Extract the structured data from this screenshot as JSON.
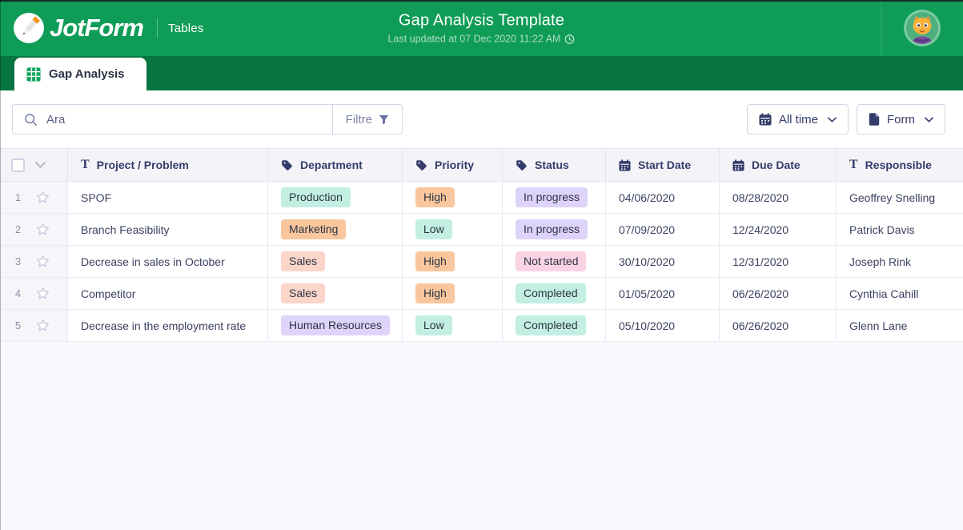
{
  "brand": {
    "logo_text": "JotForm",
    "product": "Tables"
  },
  "header": {
    "title": "Gap Analysis Template",
    "subtitle": "Last updated at 07 Dec 2020 11:22 AM"
  },
  "tab": {
    "label": "Gap Analysis"
  },
  "toolbar": {
    "search_placeholder": "Ara",
    "filter_label": "Filtre",
    "all_time_label": "All time",
    "form_label": "Form"
  },
  "icons": [
    "pencil-logo-icon",
    "clock-icon",
    "cat-avatar",
    "table-grid-icon",
    "search-icon",
    "filter-funnel-icon",
    "calendar-icon",
    "document-icon",
    "chevron-down-icon",
    "text-type-icon",
    "tag-icon",
    "star-icon",
    "checkbox"
  ],
  "colors": {
    "header_green": "#0f9c57",
    "tab_strip_green": "#077640",
    "pill_teal": "#c2efe2",
    "pill_orange": "#f9c69d",
    "pill_salmon": "#fbd4ca",
    "pill_purple": "#ded3f8",
    "pill_pink": "#fad3e4",
    "text_navy": "#2c3345"
  },
  "table": {
    "columns": [
      {
        "key": "select",
        "label": "",
        "icon": "checkbox"
      },
      {
        "key": "project",
        "label": "Project / Problem",
        "icon": "text-type-icon"
      },
      {
        "key": "department",
        "label": "Department",
        "icon": "tag-icon"
      },
      {
        "key": "priority",
        "label": "Priority",
        "icon": "tag-icon"
      },
      {
        "key": "status",
        "label": "Status",
        "icon": "tag-icon"
      },
      {
        "key": "start",
        "label": "Start Date",
        "icon": "calendar-icon"
      },
      {
        "key": "due",
        "label": "Due Date",
        "icon": "calendar-icon"
      },
      {
        "key": "responsible",
        "label": "Responsible",
        "icon": "text-type-icon"
      }
    ],
    "rows": [
      {
        "num": "1",
        "project": "SPOF",
        "department": {
          "text": "Production",
          "color": "teal"
        },
        "priority": {
          "text": "High",
          "color": "orange"
        },
        "status": {
          "text": "In progress",
          "color": "purple"
        },
        "start": "04/06/2020",
        "due": "08/28/2020",
        "responsible": "Geoffrey Snelling"
      },
      {
        "num": "2",
        "project": "Branch Feasibility",
        "department": {
          "text": "Marketing",
          "color": "orange"
        },
        "priority": {
          "text": "Low",
          "color": "teal"
        },
        "status": {
          "text": "In progress",
          "color": "purple"
        },
        "start": "07/09/2020",
        "due": "12/24/2020",
        "responsible": "Patrick Davis"
      },
      {
        "num": "3",
        "project": "Decrease in sales in October",
        "department": {
          "text": "Sales",
          "color": "salmon"
        },
        "priority": {
          "text": "High",
          "color": "orange"
        },
        "status": {
          "text": "Not started",
          "color": "pink"
        },
        "start": "30/10/2020",
        "due": "12/31/2020",
        "responsible": "Joseph Rink"
      },
      {
        "num": "4",
        "project": "Competitor",
        "department": {
          "text": "Sales",
          "color": "salmon"
        },
        "priority": {
          "text": "High",
          "color": "orange"
        },
        "status": {
          "text": "Completed",
          "color": "teal"
        },
        "start": "01/05/2020",
        "due": "06/26/2020",
        "responsible": "Cynthia Cahill"
      },
      {
        "num": "5",
        "project": "Decrease in the employment rate",
        "department": {
          "text": "Human Resources",
          "color": "purple"
        },
        "priority": {
          "text": "Low",
          "color": "teal"
        },
        "status": {
          "text": "Completed",
          "color": "teal"
        },
        "start": "05/10/2020",
        "due": "06/26/2020",
        "responsible": "Glenn Lane"
      }
    ]
  }
}
